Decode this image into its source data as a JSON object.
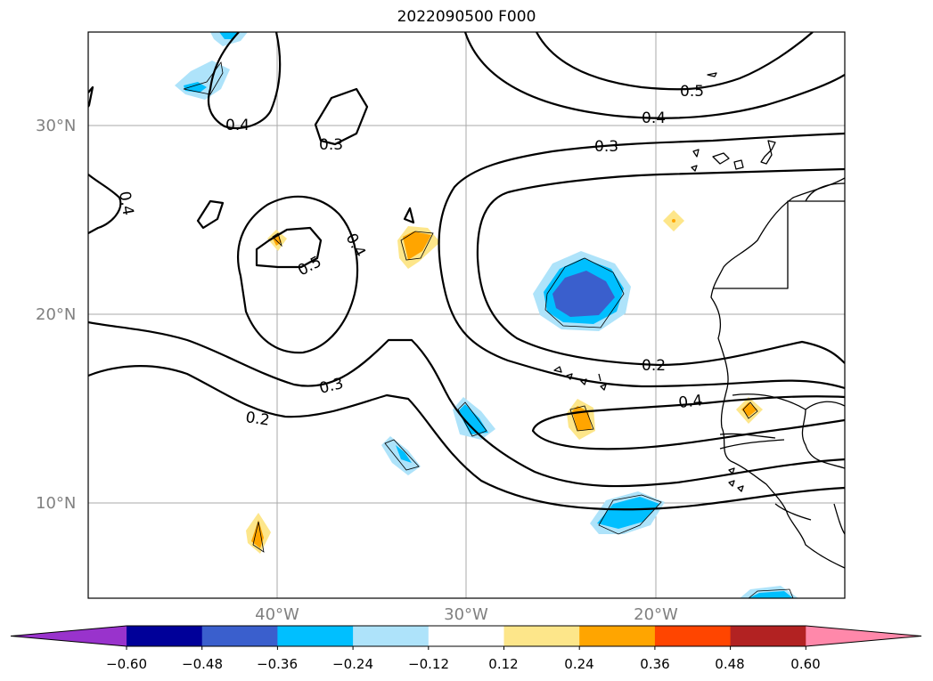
{
  "title": "2022090500 F000",
  "lat_labels": [
    "30°N",
    "20°N",
    "10°N"
  ],
  "lon_labels": [
    "40°W",
    "30°W",
    "20°W"
  ],
  "contour_labels": [
    "0.5",
    "0.4",
    "0.3",
    "0.4",
    "0.3",
    "0.4",
    "0.5",
    "0.4",
    "0.3",
    "0.2",
    "0.2",
    "0.4"
  ],
  "colorbar": {
    "ticks": [
      "−0.60",
      "−0.48",
      "−0.36",
      "−0.24",
      "−0.12",
      "0.12",
      "0.24",
      "0.36",
      "0.48",
      "0.60"
    ],
    "colors": [
      "#9933cc",
      "#000099",
      "#3a5fcd",
      "#00bfff",
      "#aee3fa",
      "#ffffff",
      "#fde68a",
      "#ffa500",
      "#ff4500",
      "#b22222",
      "#ff88aa"
    ]
  },
  "colors": {
    "dark_blue": "#3a5fcd",
    "cyan": "#00bfff",
    "light_blue": "#aee3fa",
    "yellow": "#fde68a",
    "orange": "#ffa500",
    "grid": "#aaaaaa",
    "contour": "#000000"
  }
}
